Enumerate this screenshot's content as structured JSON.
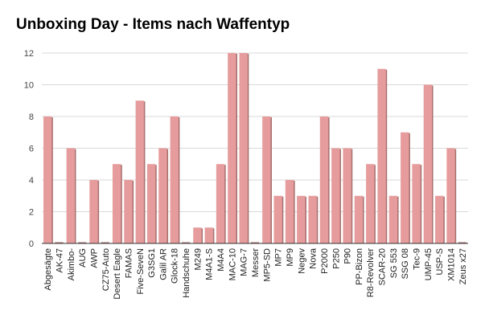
{
  "chart_data": {
    "type": "bar",
    "title": "Unboxing Day - Items nach Waffentyp",
    "xlabel": "",
    "ylabel": "",
    "ylim": [
      0,
      12
    ],
    "yticks": [
      0,
      2,
      4,
      6,
      8,
      10,
      12
    ],
    "grid": true,
    "legend": "none",
    "bar_color": "#e69c9c",
    "bar_shadow_color": "#a86f6f",
    "categories": [
      "Abgesägte",
      "AK-47",
      "Akimbo-",
      "AUG",
      "AWP",
      "CZ75-Auto",
      "Desert Eagle",
      "FAMAS",
      "Five-SeveN",
      "G3SG1",
      "Galil AR",
      "Glock-18",
      "Handschuhe",
      "M249",
      "M4A1-S",
      "M4A4",
      "MAC-10",
      "MAG-7",
      "Messer",
      "MP5-SD",
      "MP7",
      "MP9",
      "Negev",
      "Nova",
      "P2000",
      "P250",
      "P90",
      "PP-Bizon",
      "R8-Revolver",
      "SCAR-20",
      "SG 553",
      "SSG 08",
      "Tec-9",
      "UMP-45",
      "USP-S",
      "XM1014",
      "Zeus x27"
    ],
    "values": [
      8,
      0,
      6,
      0,
      4,
      0,
      5,
      4,
      9,
      5,
      6,
      8,
      0,
      1,
      1,
      5,
      12,
      12,
      0,
      8,
      3,
      4,
      3,
      3,
      8,
      6,
      6,
      3,
      5,
      11,
      3,
      7,
      5,
      10,
      3,
      6,
      0
    ]
  }
}
